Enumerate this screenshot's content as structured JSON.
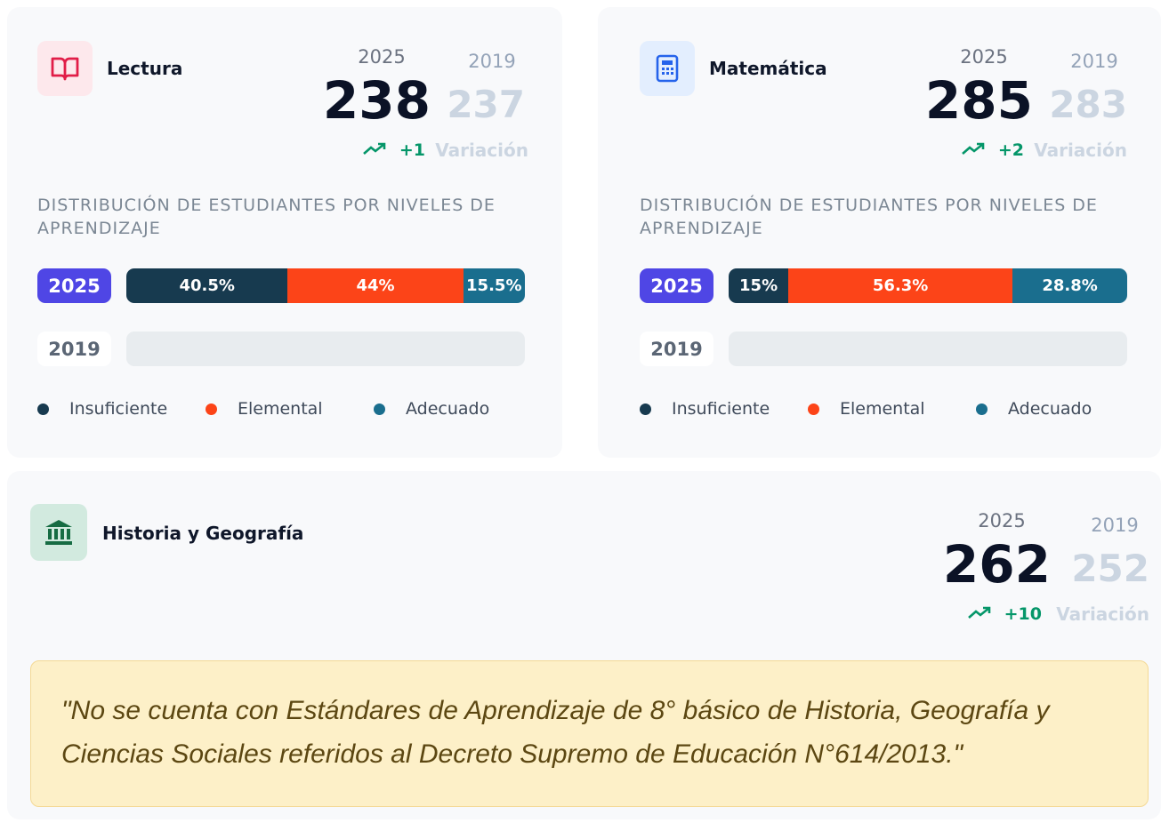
{
  "cards": [
    {
      "title": "Lectura",
      "current_year": "2025",
      "previous_year": "2019",
      "current_score": 238,
      "previous_score": 237,
      "change": "+1",
      "change_label": "Variación",
      "distribution_title": "DISTRIBUCIÓN DE ESTUDIANTES POR NIVELES DE APRENDIZAJE",
      "rows": [
        {
          "year": "2025",
          "segments": [
            {
              "value": 40.5,
              "label": "40.5%"
            },
            {
              "value": 44,
              "label": "44%"
            },
            {
              "value": 15.5,
              "label": "15.5%"
            }
          ]
        },
        {
          "year": "2019",
          "segments": []
        }
      ],
      "legend": [
        {
          "name": "Insuficiente",
          "color": "#173a4f"
        },
        {
          "name": "Elemental",
          "color": "#fc4418"
        },
        {
          "name": "Adecuado",
          "color": "#1a6e8e"
        }
      ]
    },
    {
      "title": "Matemática",
      "current_year": "2025",
      "previous_year": "2019",
      "current_score": 285,
      "previous_score": 283,
      "change": "+2",
      "change_label": "Variación",
      "distribution_title": "DISTRIBUCIÓN DE ESTUDIANTES POR NIVELES DE APRENDIZAJE",
      "rows": [
        {
          "year": "2025",
          "segments": [
            {
              "value": 15,
              "label": "15%"
            },
            {
              "value": 56.3,
              "label": "56.3%"
            },
            {
              "value": 28.8,
              "label": "28.8%"
            }
          ]
        },
        {
          "year": "2019",
          "segments": []
        }
      ],
      "legend": [
        {
          "name": "Insuficiente",
          "color": "#173a4f"
        },
        {
          "name": "Elemental",
          "color": "#fc4418"
        },
        {
          "name": "Adecuado",
          "color": "#1a6e8e"
        }
      ]
    }
  ],
  "history": {
    "title": "Historia y Geografía",
    "current_year": "2025",
    "previous_year": "2019",
    "current_score": 262,
    "previous_score": 252,
    "change": "+10",
    "change_label": "Variación",
    "note": "\"No se cuenta con Estándares de Aprendizaje de 8° básico de Historia, Geografía y Ciencias Sociales referidos al Decreto Supremo de Educación N°614/2013.\""
  }
}
